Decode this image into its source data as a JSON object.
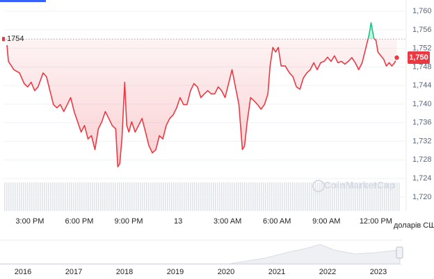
{
  "chart_data": {
    "type": "line",
    "reference": 1754,
    "last_price": {
      "value": 1750,
      "label": "1,750"
    },
    "watermark": "CoinMarketCap",
    "unit_label": "доларів США",
    "up_color": "#16c784",
    "down_color": "#ea3943",
    "grid": true,
    "xlim": [
      13.4,
      37.8
    ],
    "ylim": [
      1717,
      1762.4
    ],
    "xticks": [
      {
        "value": 15,
        "label": "3:00 PM"
      },
      {
        "value": 18,
        "label": "6:00 PM"
      },
      {
        "value": 21,
        "label": "9:00 PM"
      },
      {
        "value": 24,
        "label": "13"
      },
      {
        "value": 27,
        "label": "3:00 AM"
      },
      {
        "value": 30,
        "label": "6:00 AM"
      },
      {
        "value": 33,
        "label": "9:00 AM"
      },
      {
        "value": 36,
        "label": "12:00 PM"
      }
    ],
    "yticks": [
      {
        "value": 1720,
        "label": "1,720"
      },
      {
        "value": 1724,
        "label": "1,724"
      },
      {
        "value": 1728,
        "label": "1,728"
      },
      {
        "value": 1732,
        "label": "1,732"
      },
      {
        "value": 1736,
        "label": "1,736"
      },
      {
        "value": 1740,
        "label": "1,740"
      },
      {
        "value": 1744,
        "label": "1,744"
      },
      {
        "value": 1748,
        "label": "1,748"
      },
      {
        "value": 1752,
        "label": "1,752"
      },
      {
        "value": 1756,
        "label": "1,756"
      },
      {
        "value": 1760,
        "label": "1,760"
      }
    ],
    "x": [
      13.61,
      13.7,
      14.03,
      14.37,
      14.66,
      14.87,
      15.08,
      15.29,
      15.5,
      15.8,
      16.01,
      16.22,
      16.43,
      16.64,
      16.85,
      17.06,
      17.27,
      17.48,
      17.69,
      17.9,
      18.11,
      18.32,
      18.53,
      18.74,
      18.95,
      19.16,
      19.37,
      19.58,
      19.79,
      20.0,
      20.21,
      20.34,
      20.46,
      20.59,
      20.76,
      20.88,
      21.01,
      21.18,
      21.39,
      21.6,
      21.81,
      22.02,
      22.23,
      22.44,
      22.65,
      22.86,
      23.07,
      23.28,
      23.49,
      23.7,
      23.91,
      24.12,
      24.33,
      24.54,
      24.75,
      24.96,
      25.17,
      25.38,
      25.59,
      25.8,
      26.01,
      26.22,
      26.43,
      26.64,
      26.85,
      27.06,
      27.27,
      27.48,
      27.69,
      27.9,
      28.03,
      28.19,
      28.4,
      28.61,
      28.82,
      29.03,
      29.24,
      29.45,
      29.58,
      29.75,
      29.92,
      30.08,
      30.25,
      30.5,
      30.76,
      30.97,
      31.18,
      31.39,
      31.6,
      31.81,
      32.02,
      32.23,
      32.44,
      32.65,
      32.86,
      33.07,
      33.28,
      33.49,
      33.7,
      33.91,
      34.12,
      34.33,
      34.54,
      34.75,
      34.96,
      35.17,
      35.38,
      35.59,
      35.71,
      35.88,
      36.01,
      36.13,
      36.3,
      36.47,
      36.64,
      36.81,
      36.97,
      37.14,
      37.27
    ],
    "values": [
      1752.7,
      1749.2,
      1747.4,
      1746.7,
      1744.4,
      1743.7,
      1744.7,
      1742.9,
      1743.7,
      1746.7,
      1745.9,
      1742.9,
      1739.9,
      1739.2,
      1739.9,
      1738.4,
      1739.9,
      1741.4,
      1738.4,
      1736.2,
      1734.0,
      1735.4,
      1732.5,
      1733.2,
      1730.2,
      1734.7,
      1736.2,
      1738.4,
      1736.9,
      1735.4,
      1734.7,
      1726.5,
      1727.2,
      1732.5,
      1744.7,
      1735.4,
      1734.0,
      1736.2,
      1734.0,
      1735.4,
      1736.9,
      1734.0,
      1731.0,
      1729.5,
      1730.2,
      1733.2,
      1732.5,
      1735.4,
      1736.9,
      1737.7,
      1739.2,
      1741.4,
      1739.9,
      1739.9,
      1742.9,
      1744.4,
      1743.7,
      1741.4,
      1742.2,
      1742.9,
      1742.2,
      1742.2,
      1743.7,
      1742.9,
      1741.4,
      1744.4,
      1747.4,
      1743.7,
      1739.9,
      1730.2,
      1731.0,
      1736.2,
      1741.4,
      1740.7,
      1739.9,
      1738.9,
      1739.9,
      1742.2,
      1748.2,
      1752.2,
      1751.2,
      1752.2,
      1748.2,
      1748.2,
      1746.7,
      1745.9,
      1743.7,
      1743.2,
      1745.6,
      1746.7,
      1747.4,
      1748.9,
      1747.4,
      1748.9,
      1749.2,
      1750.1,
      1749.2,
      1750.4,
      1748.9,
      1749.2,
      1748.6,
      1749.2,
      1750.0,
      1748.9,
      1747.4,
      1748.9,
      1751.9,
      1754.9,
      1757.5,
      1754.2,
      1753.7,
      1751.2,
      1750.4,
      1749.7,
      1748.2,
      1748.9,
      1748.2,
      1748.9,
      1750.0
    ],
    "navigator_labels": [
      "2016",
      "2017",
      "2018",
      "2019",
      "2020",
      "2021",
      "2022",
      "2023"
    ]
  }
}
